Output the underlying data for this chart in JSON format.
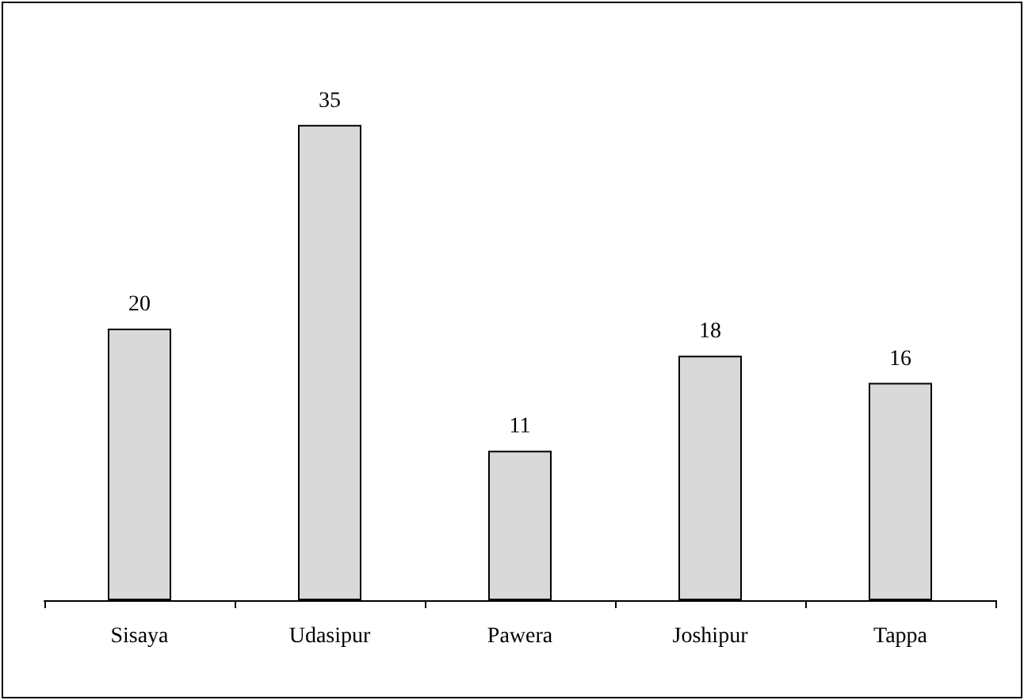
{
  "chart_data": {
    "type": "bar",
    "categories": [
      "Sisaya",
      "Udasipur",
      "Pawera",
      "Joshipur",
      "Tappa"
    ],
    "values": [
      20,
      35,
      11,
      18,
      16
    ],
    "color": "#d9d9d9",
    "data_labels": true
  }
}
